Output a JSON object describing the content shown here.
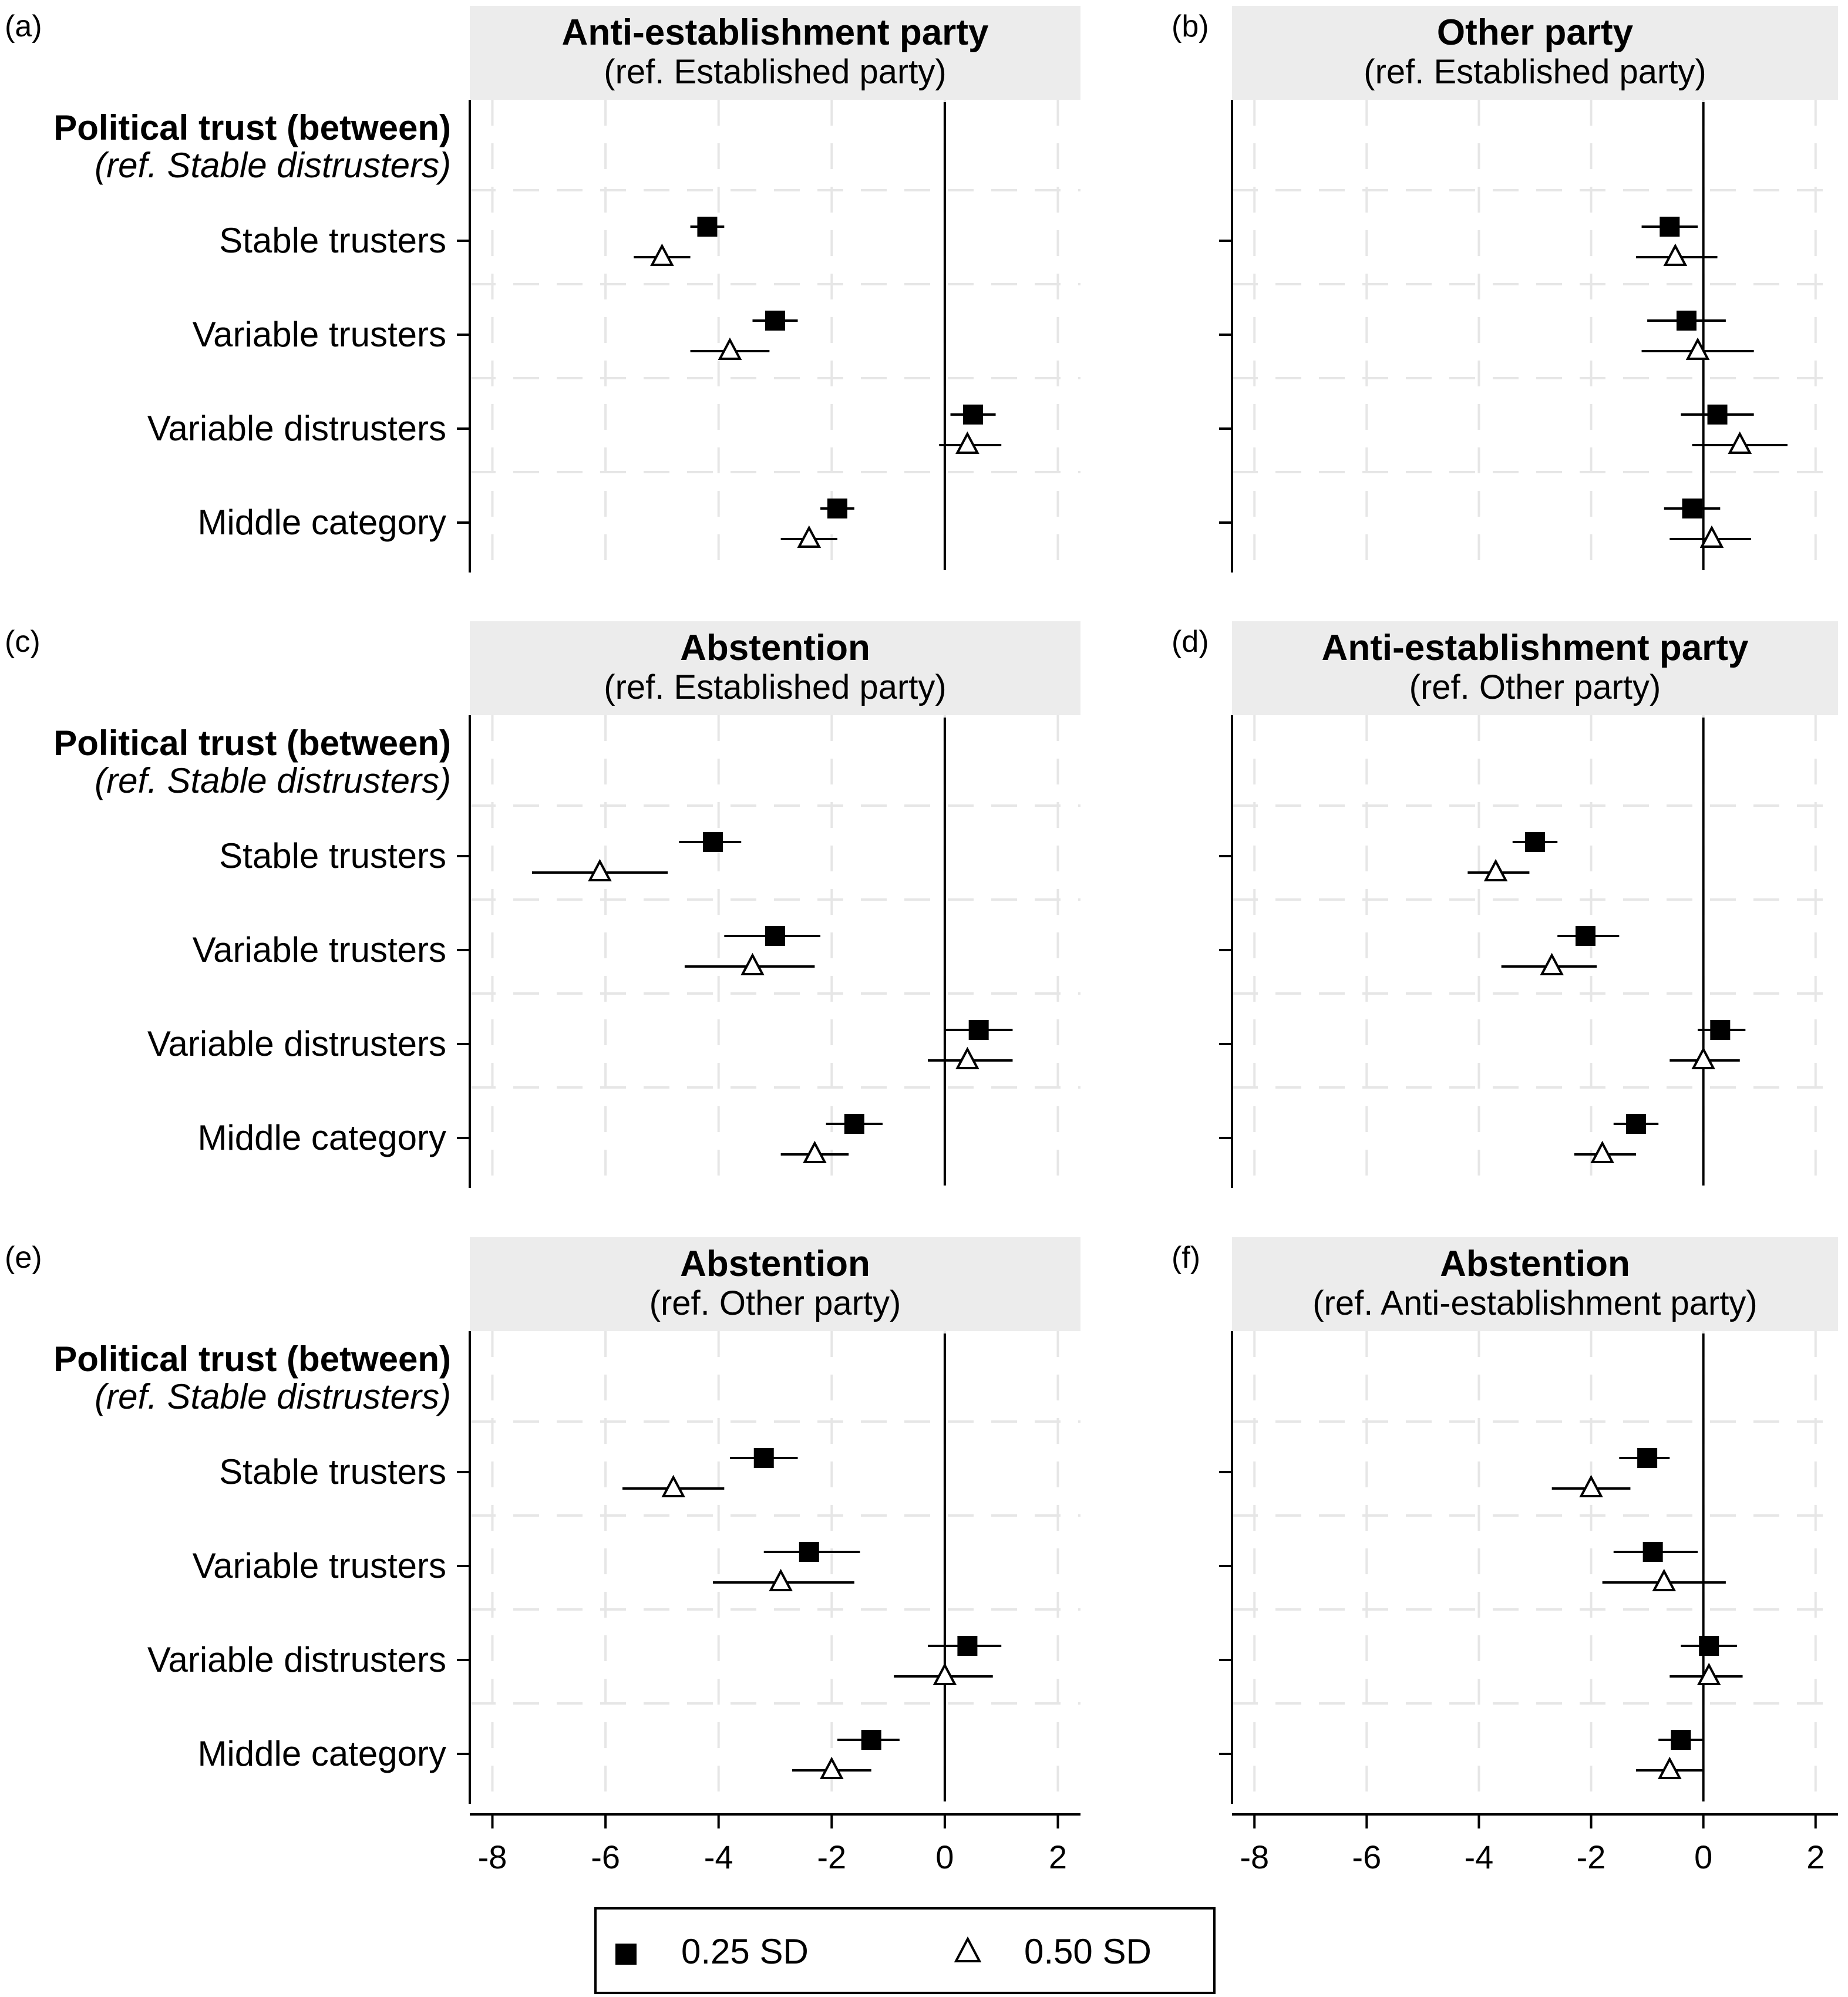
{
  "figure": {
    "legend": {
      "items": [
        {
          "label": "0.25 SD",
          "marker": "filled-square"
        },
        {
          "label": "0.50 SD",
          "marker": "hollow-triangle"
        }
      ]
    },
    "colors": {
      "panel_header_bg": "#ececec",
      "grid": "#e6e6e6",
      "marker": "#000000"
    }
  },
  "chart_data": [
    {
      "panel_letter": "(a)",
      "title": "Anti-establishment party",
      "subtitle": "(ref. Established party)",
      "type": "scatter",
      "group_label": "Political trust (between)",
      "group_ref": "(ref. Stable distrusters)",
      "categories": [
        "Stable trusters",
        "Variable trusters",
        "Variable distrusters",
        "Middle category"
      ],
      "xlim": [
        -8.4,
        2.4
      ],
      "xticks": [
        -8,
        -6,
        -4,
        -2,
        0,
        2
      ],
      "show_x_axis": false,
      "series": [
        {
          "name": "0.25 SD",
          "values": [
            -4.2,
            -3.0,
            0.5,
            -1.9
          ],
          "ci_low": [
            -4.5,
            -3.4,
            0.1,
            -2.2
          ],
          "ci_high": [
            -3.9,
            -2.6,
            0.9,
            -1.6
          ]
        },
        {
          "name": "0.50 SD",
          "values": [
            -5.0,
            -3.8,
            0.4,
            -2.4
          ],
          "ci_low": [
            -5.5,
            -4.5,
            -0.1,
            -2.9
          ],
          "ci_high": [
            -4.5,
            -3.1,
            1.0,
            -1.9
          ]
        }
      ]
    },
    {
      "panel_letter": "(b)",
      "title": "Other party",
      "subtitle": "(ref. Established party)",
      "type": "scatter",
      "categories": [
        "Stable trusters",
        "Variable trusters",
        "Variable distrusters",
        "Middle category"
      ],
      "xlim": [
        -8.4,
        2.4
      ],
      "xticks": [
        -8,
        -6,
        -4,
        -2,
        0,
        2
      ],
      "show_x_axis": false,
      "series": [
        {
          "name": "0.25 SD",
          "values": [
            -0.6,
            -0.3,
            0.25,
            -0.2
          ],
          "ci_low": [
            -1.1,
            -1.0,
            -0.4,
            -0.7
          ],
          "ci_high": [
            -0.1,
            0.4,
            0.9,
            0.3
          ]
        },
        {
          "name": "0.50 SD",
          "values": [
            -0.5,
            -0.1,
            0.65,
            0.15
          ],
          "ci_low": [
            -1.2,
            -1.1,
            -0.2,
            -0.6
          ],
          "ci_high": [
            0.25,
            0.9,
            1.5,
            0.85
          ]
        }
      ]
    },
    {
      "panel_letter": "(c)",
      "title": "Abstention",
      "subtitle": "(ref. Established party)",
      "type": "scatter",
      "group_label": "Political trust (between)",
      "group_ref": "(ref. Stable distrusters)",
      "categories": [
        "Stable trusters",
        "Variable trusters",
        "Variable distrusters",
        "Middle category"
      ],
      "xlim": [
        -8.4,
        2.4
      ],
      "xticks": [
        -8,
        -6,
        -4,
        -2,
        0,
        2
      ],
      "show_x_axis": false,
      "series": [
        {
          "name": "0.25 SD",
          "values": [
            -4.1,
            -3.0,
            0.6,
            -1.6
          ],
          "ci_low": [
            -4.7,
            -3.9,
            0.0,
            -2.1
          ],
          "ci_high": [
            -3.6,
            -2.2,
            1.2,
            -1.1
          ]
        },
        {
          "name": "0.50 SD",
          "values": [
            -6.1,
            -3.4,
            0.4,
            -2.3
          ],
          "ci_low": [
            -7.3,
            -4.6,
            -0.3,
            -2.9
          ],
          "ci_high": [
            -4.9,
            -2.3,
            1.2,
            -1.7
          ]
        }
      ]
    },
    {
      "panel_letter": "(d)",
      "title": "Anti-establishment party",
      "subtitle": "(ref. Other party)",
      "type": "scatter",
      "categories": [
        "Stable trusters",
        "Variable trusters",
        "Variable distrusters",
        "Middle category"
      ],
      "xlim": [
        -8.4,
        2.4
      ],
      "xticks": [
        -8,
        -6,
        -4,
        -2,
        0,
        2
      ],
      "show_x_axis": false,
      "series": [
        {
          "name": "0.25 SD",
          "values": [
            -3.0,
            -2.1,
            0.3,
            -1.2
          ],
          "ci_low": [
            -3.4,
            -2.6,
            -0.1,
            -1.6
          ],
          "ci_high": [
            -2.6,
            -1.5,
            0.75,
            -0.8
          ]
        },
        {
          "name": "0.50 SD",
          "values": [
            -3.7,
            -2.7,
            0.0,
            -1.8
          ],
          "ci_low": [
            -4.2,
            -3.6,
            -0.6,
            -2.3
          ],
          "ci_high": [
            -3.1,
            -1.9,
            0.65,
            -1.2
          ]
        }
      ]
    },
    {
      "panel_letter": "(e)",
      "title": "Abstention",
      "subtitle": "(ref. Other party)",
      "type": "scatter",
      "group_label": "Political trust (between)",
      "group_ref": "(ref. Stable distrusters)",
      "categories": [
        "Stable trusters",
        "Variable trusters",
        "Variable distrusters",
        "Middle category"
      ],
      "xlim": [
        -8.4,
        2.4
      ],
      "xticks": [
        -8,
        -6,
        -4,
        -2,
        0,
        2
      ],
      "show_x_axis": true,
      "series": [
        {
          "name": "0.25 SD",
          "values": [
            -3.2,
            -2.4,
            0.4,
            -1.3
          ],
          "ci_low": [
            -3.8,
            -3.2,
            -0.3,
            -1.9
          ],
          "ci_high": [
            -2.6,
            -1.5,
            1.0,
            -0.8
          ]
        },
        {
          "name": "0.50 SD",
          "values": [
            -4.8,
            -2.9,
            0.0,
            -2.0
          ],
          "ci_low": [
            -5.7,
            -4.1,
            -0.9,
            -2.7
          ],
          "ci_high": [
            -3.9,
            -1.6,
            0.85,
            -1.3
          ]
        }
      ]
    },
    {
      "panel_letter": "(f)",
      "title": "Abstention",
      "subtitle": "(ref. Anti-establishment party)",
      "type": "scatter",
      "categories": [
        "Stable trusters",
        "Variable trusters",
        "Variable distrusters",
        "Middle category"
      ],
      "xlim": [
        -8.4,
        2.4
      ],
      "xticks": [
        -8,
        -6,
        -4,
        -2,
        0,
        2
      ],
      "show_x_axis": true,
      "series": [
        {
          "name": "0.25 SD",
          "values": [
            -1.0,
            -0.9,
            0.1,
            -0.4
          ],
          "ci_low": [
            -1.5,
            -1.6,
            -0.4,
            -0.8
          ],
          "ci_high": [
            -0.6,
            -0.1,
            0.6,
            0.0
          ]
        },
        {
          "name": "0.50 SD",
          "values": [
            -2.0,
            -0.7,
            0.1,
            -0.6
          ],
          "ci_low": [
            -2.7,
            -1.8,
            -0.6,
            -1.2
          ],
          "ci_high": [
            -1.3,
            0.4,
            0.7,
            0.0
          ]
        }
      ]
    }
  ]
}
